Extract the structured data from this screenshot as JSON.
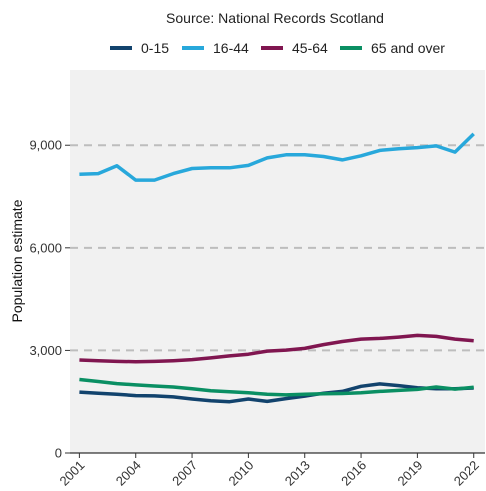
{
  "chart_data": {
    "type": "line",
    "title": "Source: National Records Scotland",
    "xlabel": "",
    "ylabel": "Population estimate",
    "x": [
      2001,
      2002,
      2003,
      2004,
      2005,
      2006,
      2007,
      2008,
      2009,
      2010,
      2011,
      2012,
      2013,
      2014,
      2015,
      2016,
      2017,
      2018,
      2019,
      2020,
      2021,
      2022
    ],
    "xticks": [
      "2001",
      "2004",
      "2007",
      "2010",
      "2013",
      "2016",
      "2019",
      "2022"
    ],
    "yticks": [
      "0",
      "3,000",
      "6,000",
      "9,000"
    ],
    "ylim": [
      0,
      11200
    ],
    "xlim": [
      2000.5,
      2022.6
    ],
    "grid": "horizontal dashed",
    "legend_position": "top",
    "series": [
      {
        "name": "0-15",
        "color": "#12436D",
        "values": [
          1780,
          1750,
          1720,
          1680,
          1670,
          1640,
          1580,
          1530,
          1500,
          1580,
          1510,
          1590,
          1660,
          1750,
          1800,
          1950,
          2020,
          1970,
          1910,
          1880,
          1880,
          1900
        ]
      },
      {
        "name": "16-44",
        "color": "#28A8DB",
        "values": [
          8150,
          8170,
          8400,
          7980,
          7980,
          8170,
          8320,
          8340,
          8340,
          8410,
          8630,
          8720,
          8720,
          8670,
          8570,
          8690,
          8850,
          8900,
          8930,
          8980,
          8800,
          9330
        ]
      },
      {
        "name": "45-64",
        "color": "#801650",
        "values": [
          2720,
          2700,
          2680,
          2670,
          2680,
          2700,
          2730,
          2780,
          2840,
          2890,
          2980,
          3010,
          3060,
          3170,
          3260,
          3330,
          3350,
          3390,
          3440,
          3410,
          3330,
          3280
        ]
      },
      {
        "name": "65 and over",
        "color": "#0A8F63",
        "values": [
          2150,
          2090,
          2030,
          1990,
          1960,
          1930,
          1880,
          1820,
          1790,
          1760,
          1720,
          1700,
          1720,
          1730,
          1740,
          1760,
          1800,
          1830,
          1860,
          1930,
          1870,
          1920
        ]
      }
    ]
  }
}
